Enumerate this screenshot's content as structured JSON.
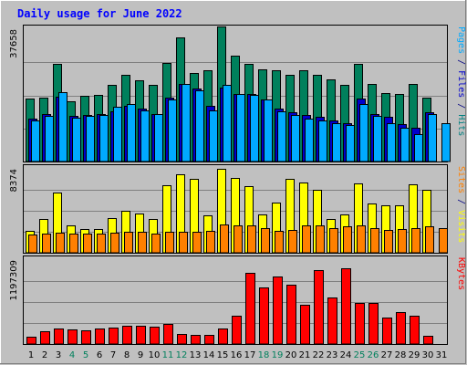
{
  "chart_data": {
    "type": "bar",
    "title": "Daily usage for June 2022",
    "categories": [
      "1",
      "2",
      "3",
      "4",
      "5",
      "6",
      "7",
      "8",
      "9",
      "10",
      "11",
      "12",
      "13",
      "14",
      "15",
      "16",
      "17",
      "18",
      "19",
      "20",
      "21",
      "22",
      "23",
      "24",
      "25",
      "26",
      "27",
      "28",
      "29",
      "30",
      "31"
    ],
    "weekend_days": [
      "4",
      "5",
      "11",
      "12",
      "18",
      "19",
      "25",
      "26"
    ],
    "panels": [
      {
        "name": "hits-files-pages",
        "ylim": [
          0,
          37658
        ],
        "max_label": "37658",
        "side_label_parts": [
          {
            "text": "Pages",
            "color": "#00aaff"
          },
          {
            "text": " / ",
            "color": "#000080"
          },
          {
            "text": "Files",
            "color": "#0000cc"
          },
          {
            "text": " / ",
            "color": "#000080"
          },
          {
            "text": "Hits",
            "color": "#008080"
          }
        ],
        "series": [
          {
            "name": "Hits",
            "color": "#00805c",
            "values": [
              17800,
              18200,
              27900,
              17100,
              18800,
              18900,
              21800,
              24600,
              23100,
              21800,
              28100,
              35200,
              25300,
              26100,
              38500,
              30100,
              27700,
              26200,
              25900,
              24600,
              25900,
              24800,
              23300,
              21800,
              27900,
              22100,
              19400,
              19100,
              22000,
              18200,
              null
            ]
          },
          {
            "name": "Files",
            "color": "#0000cc",
            "values": [
              12200,
              13400,
              18400,
              12900,
              13300,
              13500,
              14300,
              15800,
              15100,
              13600,
              18200,
              22000,
              20900,
              15800,
              21100,
              19300,
              19200,
              17700,
              15000,
              14100,
              13300,
              12700,
              11600,
              11000,
              18000,
              13600,
              12800,
              10700,
              9700,
              14000,
              null
            ]
          },
          {
            "name": "Pages",
            "color": "#00aaff",
            "values": [
              11800,
              13000,
              19800,
              12400,
              13100,
              13300,
              15500,
              16400,
              14500,
              13400,
              17700,
              22100,
              20300,
              14600,
              21700,
              19100,
              19000,
              17700,
              14300,
              13300,
              12300,
              11700,
              11000,
              10500,
              16300,
              12900,
              10800,
              9700,
              7700,
              13600,
              10900
            ]
          }
        ]
      },
      {
        "name": "visits-sites",
        "ylim": [
          0,
          8374
        ],
        "max_label": "8374",
        "side_label_parts": [
          {
            "text": "Sites",
            "color": "#ff8000"
          },
          {
            "text": " / ",
            "color": "#000080"
          },
          {
            "text": "Visits",
            "color": "#ffff00"
          }
        ],
        "series": [
          {
            "name": "Visits",
            "color": "#ffff00",
            "values": [
              2200,
              3400,
              6000,
              2700,
              2400,
              2400,
              3500,
              4200,
              3900,
              3400,
              6700,
              7800,
              7400,
              3700,
              8400,
              7500,
              6600,
              3800,
              5000,
              7400,
              7000,
              6300,
              3400,
              3800,
              6900,
              4900,
              4700,
              4700,
              6800,
              6300,
              null
            ]
          },
          {
            "name": "Sites",
            "color": "#ff8000",
            "values": [
              1800,
              1900,
              2000,
              1900,
              1900,
              1900,
              2000,
              2100,
              2100,
              1900,
              2100,
              2100,
              2100,
              2200,
              2800,
              2700,
              2700,
              2500,
              2200,
              2300,
              2700,
              2700,
              2500,
              2600,
              2700,
              2500,
              2300,
              2400,
              2500,
              2600,
              2500
            ]
          }
        ]
      },
      {
        "name": "kbytes",
        "ylim": [
          0,
          1197309
        ],
        "max_label": "1197309",
        "side_label_parts": [
          {
            "text": "KBytes",
            "color": "#ff0000"
          }
        ],
        "series": [
          {
            "name": "KBytes",
            "color": "#ff0000",
            "values": [
              100000,
              185000,
              215000,
              210000,
              200000,
              215000,
              240000,
              255000,
              255000,
              250000,
              280000,
              140000,
              130000,
              125000,
              220000,
              400000,
              1010000,
              810000,
              960000,
              850000,
              565000,
              1060000,
              670000,
              1080000,
              590000,
              590000,
              380000,
              460000,
              400000,
              115000,
              null
            ]
          }
        ]
      }
    ]
  },
  "colors": {
    "background": "#c0c0c0",
    "border": "#000000",
    "grid": "#808080",
    "title": "#0000ff",
    "weekday_label": "#000000",
    "weekend_label": "#00805c"
  }
}
